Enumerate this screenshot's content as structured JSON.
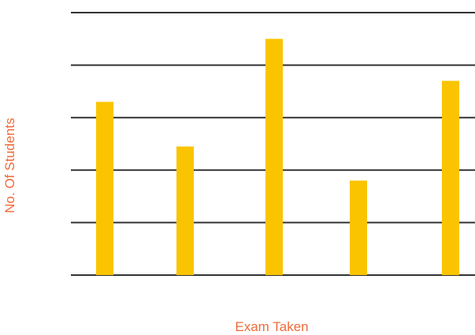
{
  "chart_data": {
    "type": "bar",
    "title": "",
    "xlabel": "Exam Taken",
    "ylabel": "No. Of Students",
    "categories": [
      "",
      "",
      "",
      "",
      ""
    ],
    "values": [
      66,
      49,
      90,
      36,
      74
    ],
    "ylim": [
      0,
      100
    ],
    "gridlines": [
      0,
      20,
      40,
      60,
      80,
      100
    ],
    "grid": true,
    "legend": "none",
    "bar_color": "#fac400",
    "grid_color": "#333333",
    "label_color": "#ee6a3a"
  }
}
